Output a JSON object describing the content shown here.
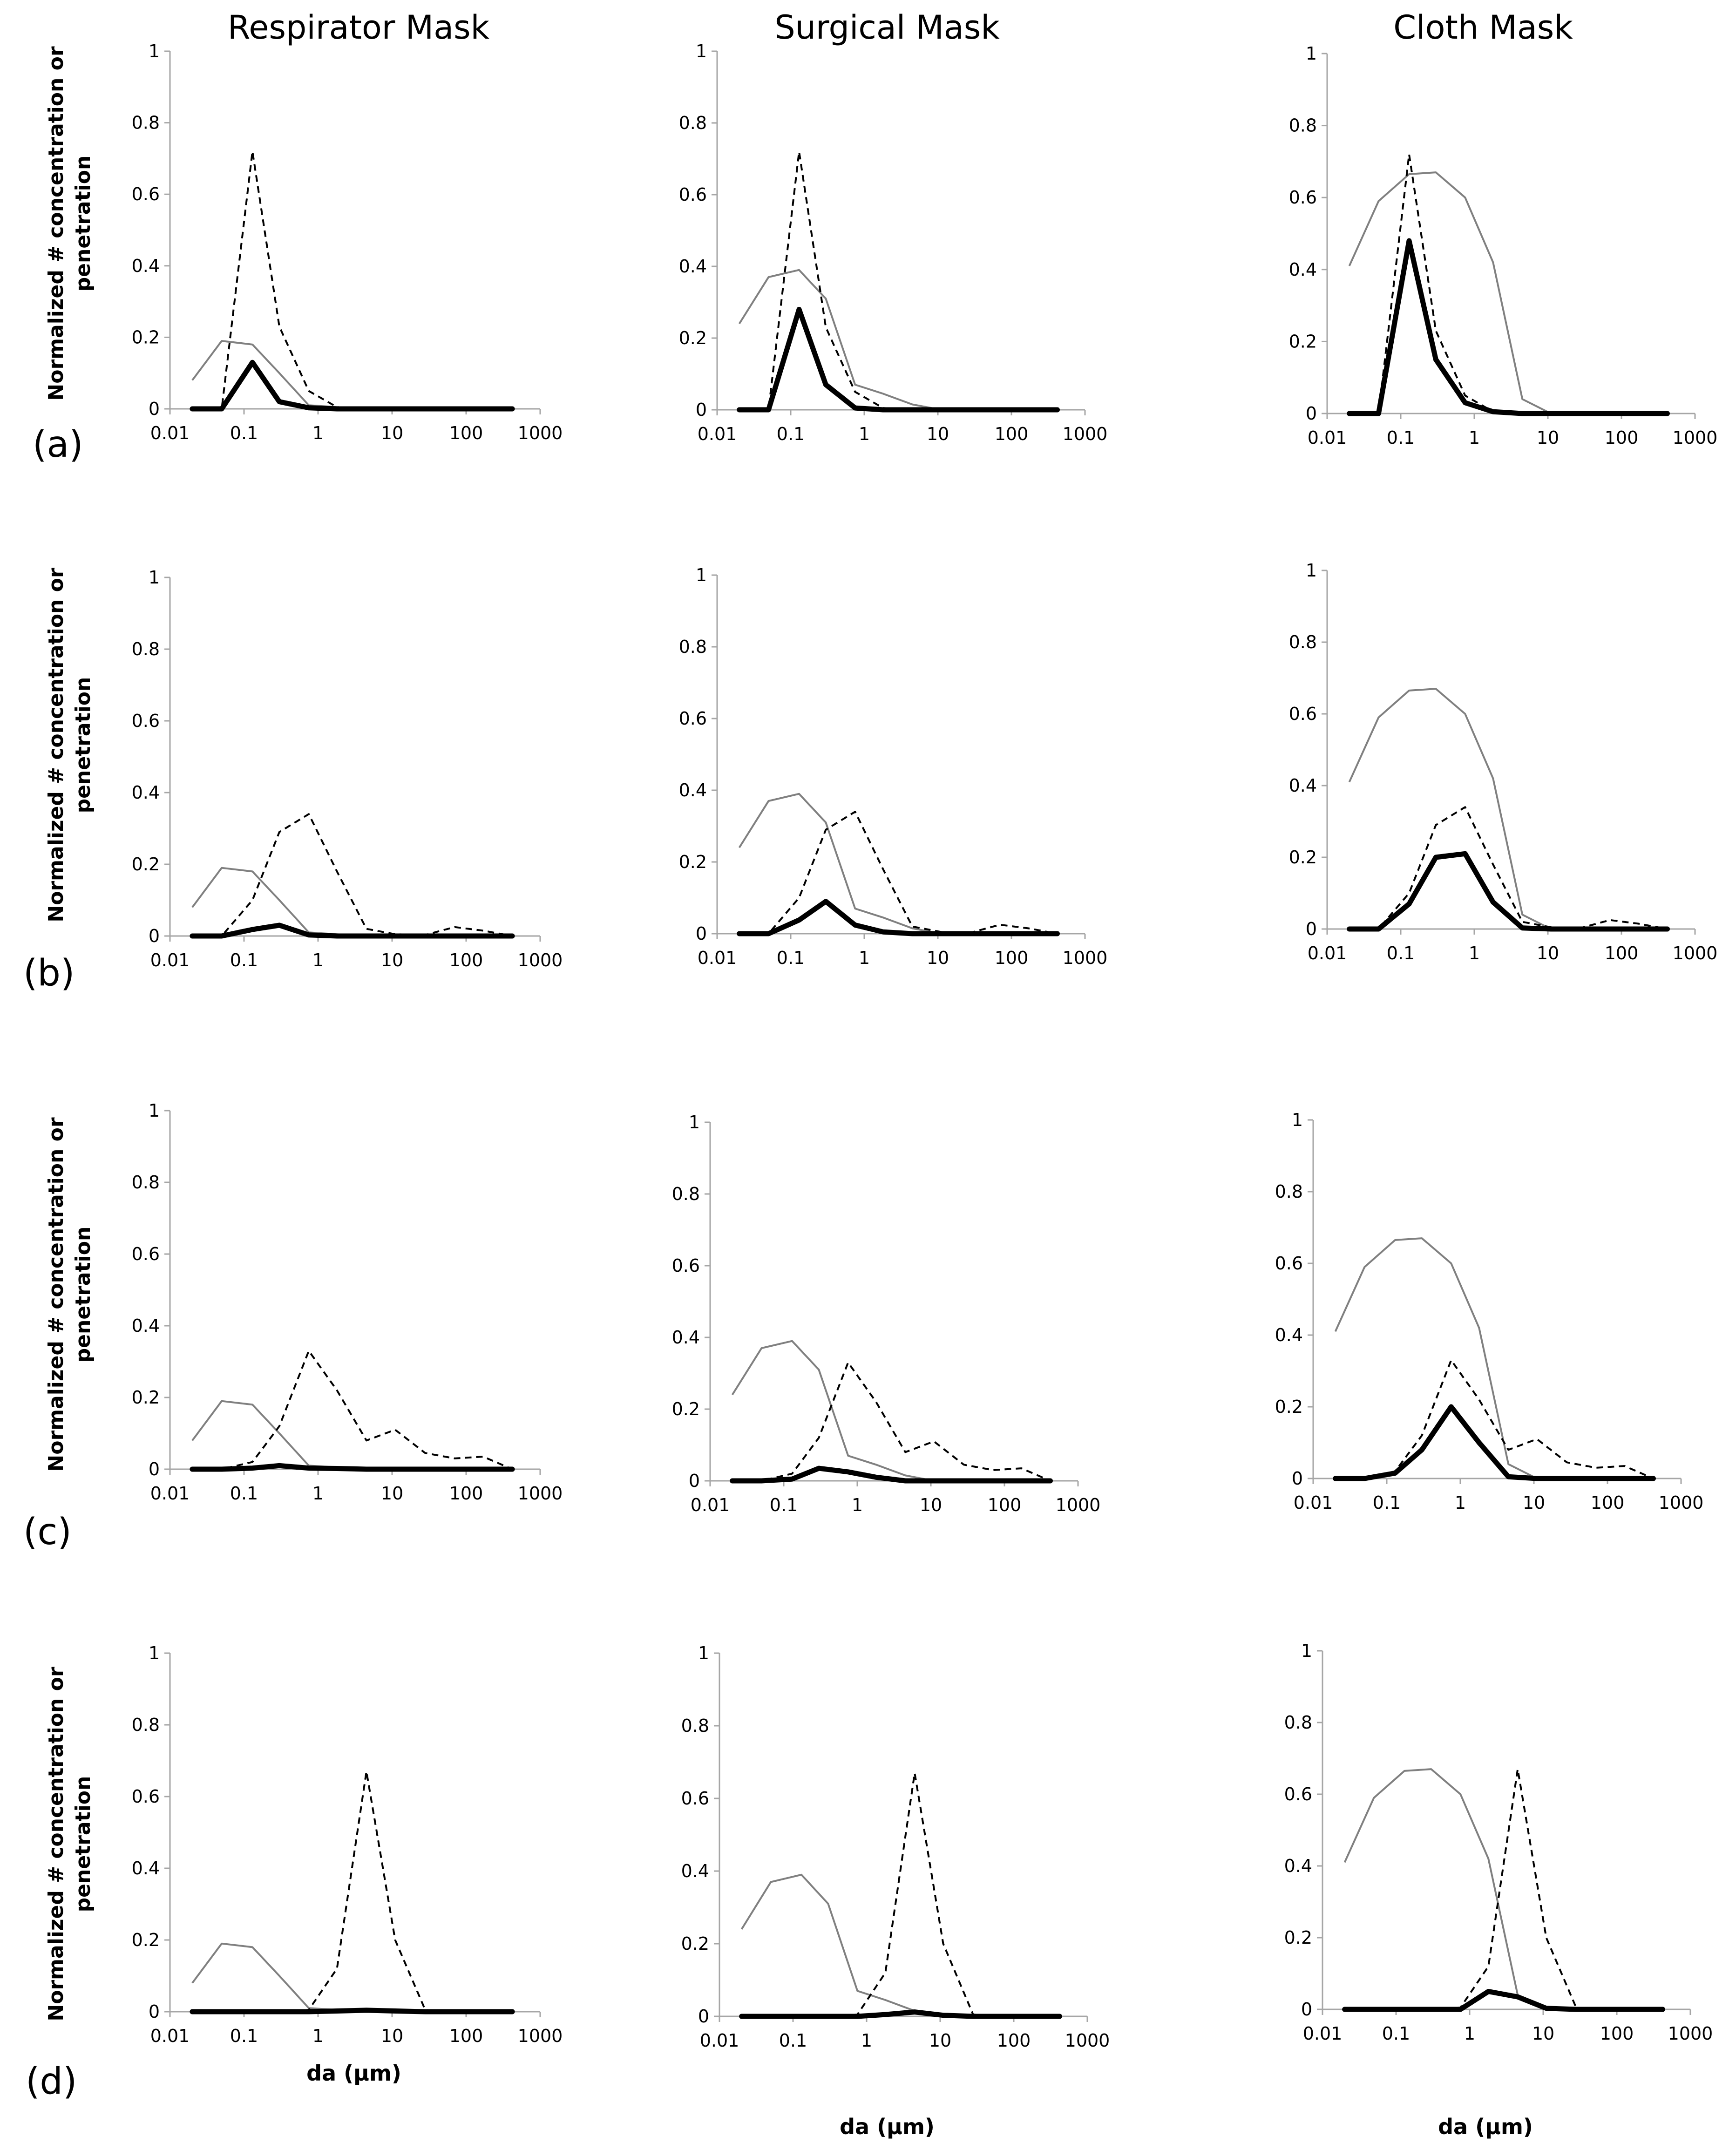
{
  "colors": {
    "axis": "#a6a6a6",
    "series_solid_thin": "#808080",
    "series_dashed": "#000000",
    "series_thick": "#000000"
  },
  "headers": {
    "col1": "Respirator Mask",
    "col2": "Surgical Mask",
    "col3": "Cloth Mask"
  },
  "row_labels": [
    "(a)",
    "(b)",
    "(c)",
    "(d)"
  ],
  "ylabel": {
    "line1": "Normalized # concentration or",
    "line2": "penetration"
  },
  "xaxis_title": "da (µm)",
  "chart_data": {
    "type": "line",
    "x_scale": "log",
    "xlim": [
      0.01,
      1000
    ],
    "ylim": [
      0,
      1
    ],
    "x_ticks": [
      "0.01",
      "0.1",
      "1",
      "10",
      "100",
      "1000"
    ],
    "y_ticks": [
      "0",
      "0.2",
      "0.4",
      "0.6",
      "0.8",
      "1"
    ],
    "x": [
      0.02,
      0.05,
      0.13,
      0.3,
      0.75,
      1.8,
      4.5,
      11,
      28,
      70,
      170,
      420
    ],
    "mask_penetration": {
      "respirator": [
        0.08,
        0.19,
        0.18,
        0.1,
        0.01,
        0.005,
        0,
        0,
        0,
        0,
        0,
        0
      ],
      "surgical": [
        0.24,
        0.37,
        0.39,
        0.31,
        0.07,
        0.045,
        0.015,
        0,
        0,
        0,
        0,
        0
      ],
      "cloth": [
        0.41,
        0.59,
        0.665,
        0.67,
        0.6,
        0.42,
        0.04,
        0,
        0,
        0,
        0,
        0
      ]
    },
    "rows": [
      {
        "label": "(a)",
        "particles": [
          0,
          0,
          0.72,
          0.23,
          0.05,
          0.005,
          0,
          0,
          0,
          0,
          0,
          0
        ],
        "results": {
          "respirator": [
            0,
            0,
            0.13,
            0.02,
            0.003,
            0,
            0,
            0,
            0,
            0,
            0,
            0
          ],
          "surgical": [
            0,
            0,
            0.28,
            0.07,
            0.005,
            0,
            0,
            0,
            0,
            0,
            0,
            0
          ],
          "cloth": [
            0,
            0,
            0.48,
            0.15,
            0.03,
            0.005,
            0,
            0,
            0,
            0,
            0,
            0
          ]
        }
      },
      {
        "label": "(b)",
        "particles": [
          0,
          0,
          0.1,
          0.29,
          0.34,
          0.18,
          0.02,
          0.005,
          0.003,
          0.025,
          0.015,
          0
        ],
        "results": {
          "respirator": [
            0,
            0,
            0.018,
            0.03,
            0.003,
            0,
            0,
            0,
            0,
            0,
            0,
            0
          ],
          "surgical": [
            0,
            0,
            0.038,
            0.09,
            0.024,
            0.005,
            0,
            0,
            0,
            0,
            0,
            0
          ],
          "cloth": [
            0,
            0,
            0.07,
            0.2,
            0.21,
            0.075,
            0.003,
            0,
            0,
            0,
            0,
            0
          ]
        }
      },
      {
        "label": "(c)",
        "particles": [
          0,
          0,
          0.02,
          0.12,
          0.33,
          0.22,
          0.08,
          0.11,
          0.045,
          0.03,
          0.035,
          0
        ],
        "results": {
          "respirator": [
            0,
            0,
            0.003,
            0.01,
            0.003,
            0.002,
            0,
            0,
            0,
            0,
            0,
            0
          ],
          "surgical": [
            0,
            0,
            0.005,
            0.035,
            0.025,
            0.01,
            0,
            0,
            0,
            0,
            0,
            0
          ],
          "cloth": [
            0,
            0,
            0.015,
            0.08,
            0.2,
            0.1,
            0.005,
            0,
            0,
            0,
            0,
            0
          ]
        }
      },
      {
        "label": "(d)",
        "particles": [
          0,
          0,
          0,
          0,
          0.005,
          0.12,
          0.67,
          0.2,
          0.005,
          0,
          0,
          0
        ],
        "results": {
          "respirator": [
            0,
            0,
            0,
            0,
            0,
            0.002,
            0.004,
            0.002,
            0,
            0,
            0,
            0
          ],
          "surgical": [
            0,
            0,
            0,
            0,
            0,
            0.005,
            0.012,
            0.003,
            0,
            0,
            0,
            0
          ],
          "cloth": [
            0,
            0,
            0,
            0,
            0,
            0.05,
            0.035,
            0.003,
            0,
            0,
            0,
            0
          ]
        }
      }
    ]
  }
}
